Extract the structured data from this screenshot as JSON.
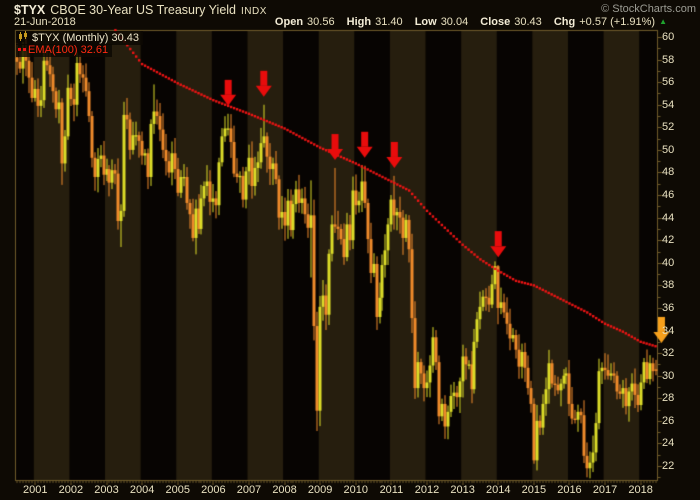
{
  "header": {
    "symbol": "$TYX",
    "title": "CBOE 30-Year US Treasury Yield",
    "exchange": "INDX",
    "date": "21-Jun-2018",
    "copyright": "© StockCharts.com",
    "quote": {
      "open_label": "Open",
      "open": "30.56",
      "high_label": "High",
      "high": "31.40",
      "low_label": "Low",
      "low": "30.04",
      "close_label": "Close",
      "close": "30.43",
      "chg_label": "Chg",
      "chg": "+0.57 (+1.91%)",
      "direction_icon": "▲"
    }
  },
  "legend": {
    "series": "$TYX (Monthly) 30.43",
    "ema": "EMA(100) 32.61"
  },
  "axes": {
    "y_ticks": [
      60,
      58,
      56,
      54,
      52,
      50,
      48,
      46,
      44,
      42,
      40,
      38,
      36,
      34,
      32,
      30,
      28,
      26,
      24,
      22
    ],
    "years": [
      2001,
      2002,
      2003,
      2004,
      2005,
      2006,
      2007,
      2008,
      2009,
      2010,
      2011,
      2012,
      2013,
      2014,
      2015,
      2016,
      2017,
      2018
    ]
  },
  "colors": {
    "page_bg": "#0e0a04",
    "band_dark": "#070402",
    "band_light": "#261e0e",
    "axis": "#6f5b2a",
    "text": "#e9e1c0",
    "up_candle": "#dcdc28",
    "down_candle": "#ef8a2a",
    "ema_line": "#f01414",
    "arrow_red": "#e80c0c",
    "arrow_orange": "#f7a01c",
    "gain_green": "#1fa32e"
  },
  "chart_data": {
    "type": "candlestick",
    "symbol": "$TYX",
    "interval": "monthly",
    "start_month": "2000-07",
    "end_month": "2018-06",
    "ylim": [
      20.76,
      60.62
    ],
    "first_open": 58.2,
    "closes": [
      57.8,
      57.2,
      58.8,
      57.9,
      56.4,
      54.6,
      55.4,
      53.9,
      54.4,
      57.9,
      57.5,
      56.7,
      55.2,
      53.6,
      54.2,
      48.8,
      51.2,
      55.5,
      54.5,
      54.0,
      57.7,
      56.7,
      56.4,
      55.2,
      53.0,
      49.3,
      47.6,
      49.2,
      49.5,
      47.8,
      48.3,
      47.1,
      48.2,
      47.9,
      43.7,
      44.6,
      53.1,
      52.7,
      50.0,
      51.3,
      51.3,
      50.8,
      49.5,
      49.7,
      47.6,
      52.3,
      53.4,
      53.0,
      51.8,
      50.0,
      49.0,
      48.0,
      49.7,
      48.3,
      46.2,
      47.6,
      47.6,
      45.3,
      44.3,
      42.2,
      44.8,
      43.0,
      45.7,
      46.8,
      47.2,
      45.4,
      45.7,
      45.1,
      48.9,
      51.2,
      51.9,
      51.9,
      50.7,
      47.9,
      47.6,
      47.7,
      45.6,
      48.1,
      49.3,
      46.8,
      48.4,
      48.9,
      50.6,
      51.2,
      49.4,
      48.3,
      48.8,
      47.4,
      44.0,
      44.5,
      43.3,
      45.5,
      42.9,
      45.2,
      46.5,
      45.3,
      45.7,
      44.3,
      43.1,
      44.2,
      34.4,
      26.9,
      36.1,
      37.1,
      35.4,
      40.8,
      43.4,
      43.2,
      43.0,
      42.1,
      40.5,
      43.4,
      42.0,
      46.4,
      45.1,
      45.5,
      47.2,
      45.3,
      42.1,
      39.1,
      39.9,
      35.2,
      36.9,
      39.8,
      41.1,
      43.4,
      45.6,
      44.2,
      44.5,
      44.0,
      42.2,
      43.8,
      41.2,
      35.1,
      28.9,
      31.2,
      30.2,
      28.9,
      29.4,
      30.9,
      33.4,
      31.2,
      26.4,
      27.5,
      25.5,
      26.8,
      28.2,
      28.5,
      28.1,
      29.5,
      31.7,
      31.0,
      31.0,
      28.8,
      33.0,
      35.0,
      36.1,
      37.0,
      36.9,
      36.3,
      38.1,
      39.7,
      36.0,
      36.5,
      35.6,
      34.6,
      33.3,
      33.6,
      32.3,
      30.8,
      32.1,
      30.7,
      28.9,
      27.5,
      22.5,
      26.0,
      25.4,
      27.5,
      28.8,
      31.1,
      29.3,
      29.2,
      28.7,
      29.3,
      30.0,
      30.2,
      27.5,
      26.2,
      26.1,
      26.8,
      26.5,
      22.9,
      21.8,
      22.3,
      23.2,
      25.8,
      30.4,
      30.7,
      30.5,
      30.0,
      30.2,
      30.0,
      28.6,
      28.4,
      28.9,
      27.3,
      28.6,
      29.3,
      28.3,
      27.4,
      29.4,
      31.2,
      29.7,
      31.1,
      30.4,
      30.43
    ],
    "ohlc_overrides": {
      "2001-10": {
        "l": 46.9
      },
      "2003-06": {
        "l": 41.4
      },
      "2003-08": {
        "h": 54.6
      },
      "2004-05": {
        "h": 55.8
      },
      "2005-06": {
        "l": 41.9
      },
      "2006-06": {
        "h": 53.2
      },
      "2007-06": {
        "h": 54.0
      },
      "2008-10": {
        "h": 47.3,
        "l": 38.7
      },
      "2008-12": {
        "l": 25.1
      },
      "2009-06": {
        "h": 48.4
      },
      "2010-04": {
        "h": 48.6
      },
      "2011-02": {
        "h": 47.7
      },
      "2012-07": {
        "l": 24.4
      },
      "2014-01": {
        "h": 39.8
      },
      "2015-01": {
        "l": 22.2
      },
      "2016-07": {
        "l": 21.0
      },
      "2018-06": {
        "o": 30.56,
        "h": 31.4,
        "l": 30.04,
        "c": 30.43
      }
    },
    "ema100_last": 32.61,
    "ema_points": [
      [
        "2003-04",
        60.6
      ],
      [
        "2004-01",
        57.6
      ],
      [
        "2005-01",
        55.9
      ],
      [
        "2006-01",
        54.4
      ],
      [
        "2007-01",
        53.2
      ],
      [
        "2008-01",
        51.9
      ],
      [
        "2009-01",
        50.2
      ],
      [
        "2010-01",
        48.8
      ],
      [
        "2011-01",
        47.2
      ],
      [
        "2011-07",
        46.4
      ],
      [
        "2012-01",
        44.6
      ],
      [
        "2012-07",
        43.1
      ],
      [
        "2013-01",
        41.6
      ],
      [
        "2013-07",
        40.3
      ],
      [
        "2014-01",
        39.3
      ],
      [
        "2014-07",
        38.4
      ],
      [
        "2015-01",
        38.0
      ],
      [
        "2015-07",
        37.2
      ],
      [
        "2016-01",
        36.4
      ],
      [
        "2016-07",
        35.6
      ],
      [
        "2017-01",
        34.6
      ],
      [
        "2017-07",
        33.9
      ],
      [
        "2018-01",
        33.0
      ],
      [
        "2018-06",
        32.61
      ]
    ],
    "arrows": [
      [
        "2006-06",
        53.9,
        "arrow_red"
      ],
      [
        "2007-06",
        54.7,
        "arrow_red"
      ],
      [
        "2009-06",
        49.1,
        "arrow_red"
      ],
      [
        "2010-04",
        49.3,
        "arrow_red"
      ],
      [
        "2011-02",
        48.4,
        "arrow_red"
      ],
      [
        "2014-01",
        40.5,
        "arrow_red"
      ],
      [
        "2018-08",
        32.9,
        "arrow_orange"
      ]
    ]
  }
}
